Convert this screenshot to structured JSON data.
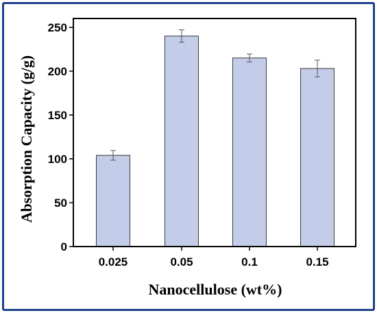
{
  "chart_data": {
    "type": "bar",
    "title": "",
    "xlabel": "Nanocellulose (wt%)",
    "ylabel": "Absorption Capacity (g/g)",
    "categories": [
      "0.025",
      "0.05",
      "0.1",
      "0.15"
    ],
    "values": [
      104,
      240,
      215,
      203
    ],
    "errors": [
      5.5,
      7,
      4.5,
      9.5
    ],
    "ylim": [
      0,
      260
    ],
    "yticks": [
      0,
      50,
      100,
      150,
      200,
      250
    ],
    "grid": false,
    "legend": "none",
    "bar_color": "#c3cce9",
    "bar_edge_color": "#3a3a3a",
    "frame_color": "#1f3f8f"
  }
}
